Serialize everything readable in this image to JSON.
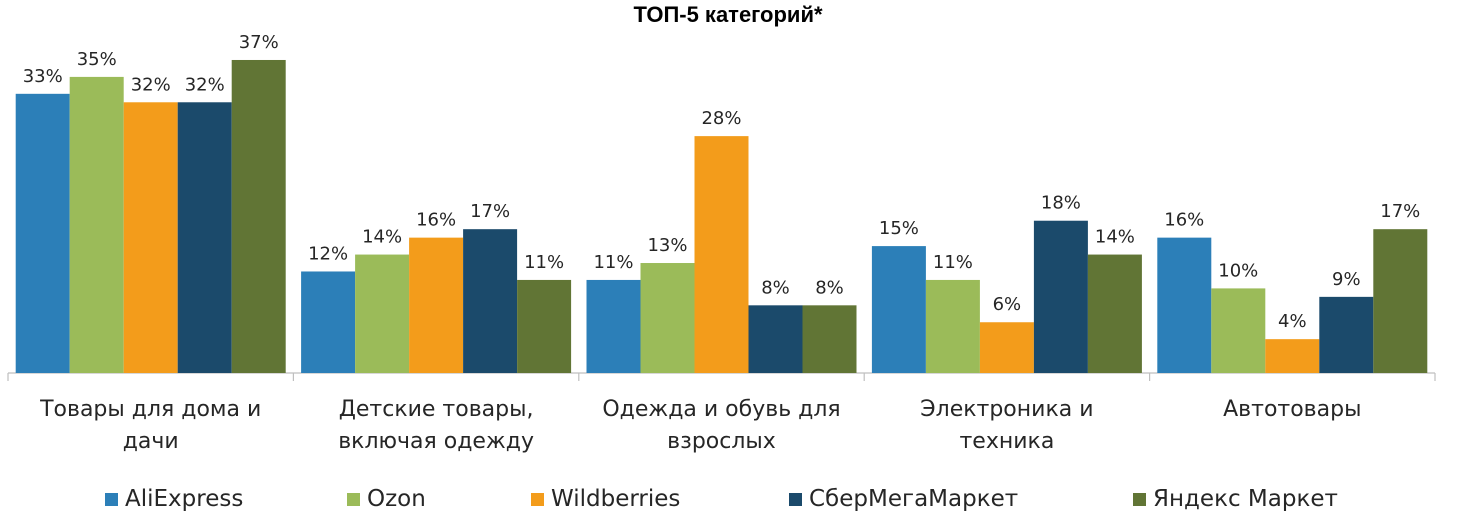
{
  "title": "ТОП-5 категорий*",
  "colors": {
    "AliExpress": "#2C7FB8",
    "Ozon": "#9BBB59",
    "Wildberries": "#F39C1B",
    "СберМегаМаркет": "#1B4A6B",
    "Яндекс Маркет": "#617535",
    "axis": "#BFBFBF"
  },
  "chart_data": {
    "type": "bar",
    "title": "ТОП-5 категорий*",
    "xlabel": "",
    "ylabel": "",
    "ylim": [
      0,
      37
    ],
    "grid": false,
    "legend_position": "bottom",
    "value_suffix": "%",
    "categories": [
      [
        "Товары для дома и",
        "дачи"
      ],
      [
        "Детские товары,",
        "включая одежду"
      ],
      [
        "Одежда и обувь для",
        "взрослых"
      ],
      [
        "Электроника и",
        "техника"
      ],
      [
        "Автотовары"
      ]
    ],
    "series": [
      {
        "name": "AliExpress",
        "values": [
          33,
          12,
          11,
          15,
          16
        ]
      },
      {
        "name": "Ozon",
        "values": [
          35,
          14,
          13,
          11,
          10
        ]
      },
      {
        "name": "Wildberries",
        "values": [
          32,
          16,
          28,
          6,
          4
        ]
      },
      {
        "name": "СберМегаМаркет",
        "values": [
          32,
          17,
          8,
          18,
          9
        ]
      },
      {
        "name": "Яндекс Маркет",
        "values": [
          37,
          11,
          8,
          14,
          17
        ]
      }
    ]
  }
}
